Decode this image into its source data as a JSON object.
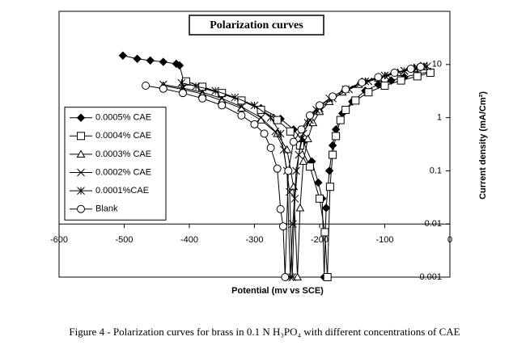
{
  "chart_data": {
    "type": "line",
    "title": "Polarization curves",
    "x_label": "Potential (mv vs SCE)",
    "y_label": "Current density (mA/Cm²)",
    "caption": "Figure 4 - Polarization curves for brass in 0.1 N H₃PO₄ with different concentrations of CAE",
    "xlim": [
      -600,
      0
    ],
    "xticks": [
      -600,
      -500,
      -400,
      -300,
      -200,
      -100,
      0
    ],
    "ylim": [
      0.001,
      100
    ],
    "yticks": [
      0.001,
      0.01,
      0.1,
      1,
      10
    ],
    "y_log": true,
    "x_axis_crosses": 0.01,
    "legend": "center-left",
    "grid": false,
    "series": [
      {
        "name": "0.0005% CAE",
        "color": "#000000",
        "marker": "diamond",
        "x": [
          -502,
          -480,
          -460,
          -440,
          -420,
          -415,
          -408,
          -380,
          -350,
          -320,
          -290,
          -260,
          -240,
          -225,
          -212,
          -202,
          -196,
          -193,
          -190,
          -185,
          -180,
          -175,
          -165,
          -150,
          -130,
          -110,
          -90,
          -70,
          -50,
          -30
        ],
        "values": [
          14.7,
          12.8,
          11.9,
          11.2,
          10.3,
          9.6,
          4.5,
          3.6,
          2.8,
          2.1,
          1.5,
          0.95,
          0.6,
          0.35,
          0.15,
          0.06,
          0.03,
          0.001,
          0.02,
          0.1,
          0.3,
          0.6,
          1.2,
          2.0,
          3.2,
          4.2,
          5.0,
          5.8,
          6.6,
          7.3
        ]
      },
      {
        "name": "0.0004% CAE",
        "color": "#000000",
        "marker": "square",
        "x": [
          -405,
          -380,
          -350,
          -320,
          -290,
          -265,
          -245,
          -230,
          -215,
          -200,
          -192,
          -188,
          -184,
          -180,
          -175,
          -168,
          -160,
          -145,
          -125,
          -100,
          -75,
          -50,
          -30
        ],
        "values": [
          4.8,
          3.8,
          2.9,
          2.1,
          1.4,
          0.9,
          0.55,
          0.3,
          0.12,
          0.03,
          0.007,
          0.001,
          0.05,
          0.2,
          0.45,
          0.9,
          1.4,
          2.1,
          3.0,
          4.0,
          5.0,
          6.0,
          7.0
        ]
      },
      {
        "name": "0.0003% CAE",
        "color": "#000000",
        "marker": "triangle",
        "x": [
          -440,
          -410,
          -380,
          -350,
          -320,
          -290,
          -265,
          -250,
          -240,
          -234,
          -230,
          -225,
          -218,
          -210,
          -200,
          -185,
          -165,
          -140,
          -110,
          -80,
          -55,
          -40
        ],
        "values": [
          4.0,
          3.4,
          2.8,
          2.1,
          1.5,
          0.9,
          0.5,
          0.25,
          0.05,
          0.001,
          0.02,
          0.15,
          0.4,
          0.8,
          1.3,
          2.0,
          3.0,
          4.2,
          5.5,
          7.0,
          8.3,
          9.0
        ]
      },
      {
        "name": "0.0002% CAE",
        "color": "#000000",
        "marker": "x",
        "x": [
          -440,
          -410,
          -380,
          -350,
          -320,
          -290,
          -268,
          -255,
          -246,
          -242,
          -238,
          -232,
          -225,
          -215,
          -200,
          -180,
          -155,
          -125,
          -95,
          -70,
          -50,
          -40
        ],
        "values": [
          4.2,
          3.6,
          3.0,
          2.3,
          1.6,
          1.0,
          0.55,
          0.25,
          0.04,
          0.001,
          0.03,
          0.2,
          0.5,
          0.9,
          1.5,
          2.3,
          3.4,
          4.8,
          6.2,
          7.6,
          8.8,
          9.5
        ]
      },
      {
        "name": "0.0001%CAE",
        "color": "#000000",
        "marker": "star",
        "x": [
          -412,
          -390,
          -360,
          -330,
          -300,
          -275,
          -260,
          -250,
          -245,
          -241,
          -236,
          -228,
          -218,
          -205,
          -185,
          -160,
          -130,
          -100,
          -70,
          -50,
          -35
        ],
        "values": [
          4.5,
          3.9,
          3.2,
          2.4,
          1.7,
          1.0,
          0.5,
          0.1,
          0.001,
          0.01,
          0.1,
          0.4,
          0.8,
          1.4,
          2.3,
          3.4,
          4.8,
          6.2,
          7.6,
          8.6,
          9.2
        ]
      },
      {
        "name": "Blank",
        "color": "#000000",
        "marker": "circle",
        "x": [
          -467,
          -440,
          -410,
          -380,
          -350,
          -320,
          -300,
          -285,
          -275,
          -265,
          -260,
          -256,
          -253,
          -248,
          -240,
          -228,
          -215,
          -200,
          -180,
          -160,
          -135,
          -110,
          -85,
          -60,
          -45
        ],
        "values": [
          4.0,
          3.5,
          2.9,
          2.3,
          1.7,
          1.1,
          0.75,
          0.5,
          0.27,
          0.11,
          0.019,
          0.009,
          0.001,
          0.1,
          0.35,
          0.6,
          1.1,
          1.7,
          2.5,
          3.4,
          4.6,
          5.8,
          7.0,
          8.3,
          9.0
        ]
      }
    ]
  }
}
